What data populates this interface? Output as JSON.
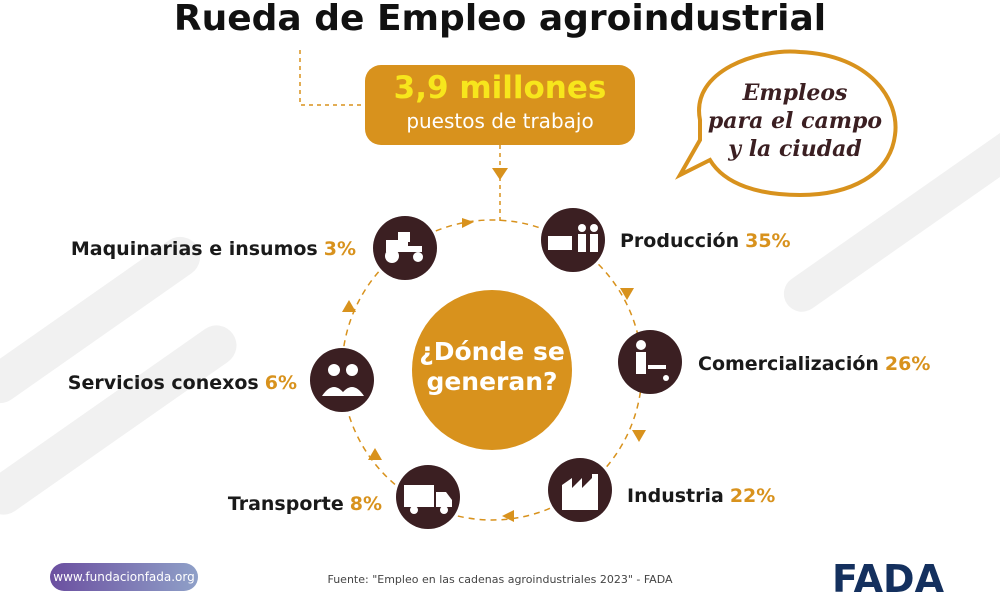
{
  "title": "Rueda de Empleo agroindustrial",
  "headline": {
    "value": "3,9 millones",
    "subtitle": "puestos de trabajo"
  },
  "bubble": [
    "Empleos",
    "para el campo",
    "y la ciudad"
  ],
  "center": [
    "¿Dónde se",
    "generan?"
  ],
  "nodes": [
    {
      "label": "Producción",
      "share": "35%"
    },
    {
      "label": "Comercialización",
      "share": "26%"
    },
    {
      "label": "Industria",
      "share": "22%"
    },
    {
      "label": "Transporte",
      "share": "8%"
    },
    {
      "label": "Servicios conexos",
      "share": "6%"
    },
    {
      "label": "Maquinarias e insumos",
      "share": "3%"
    }
  ],
  "footer": {
    "url": "www.fundacionfada.org",
    "source": "Fuente: \"Empleo en las cadenas agroindustriales 2023\" - FADA",
    "logo": "FADA"
  }
}
